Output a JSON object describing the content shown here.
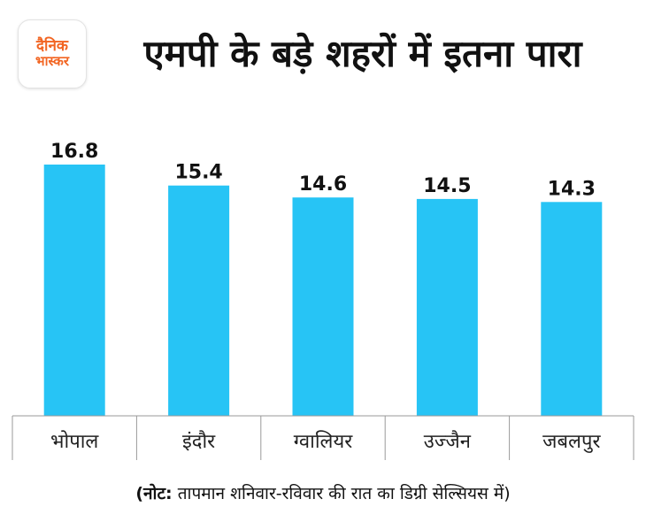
{
  "brand": {
    "line1": "दैनिक",
    "line2": "भास्कर"
  },
  "colors": {
    "bar": "#27c4f5",
    "axis": "#9a9a9a",
    "brand": "#f26522"
  },
  "note": {
    "bold": "(नोट:",
    "rest": " तापमान शनिवार-रविवार की रात का डिग्री सेल्सियस में)"
  },
  "chart_data": {
    "type": "bar",
    "title": "एमपी के बड़े शहरों में इतना पारा",
    "categories": [
      "भोपाल",
      "इंदौर",
      "ग्वालियर",
      "उज्जैन",
      "जबलपुर"
    ],
    "values": [
      16.8,
      15.4,
      14.6,
      14.5,
      14.3
    ],
    "value_labels": [
      "16.8",
      "15.4",
      "14.6",
      "14.5",
      "14.3"
    ],
    "xlabel": "",
    "ylabel": "",
    "ylim": [
      0,
      16.8
    ],
    "grid": false,
    "unit": "डिग्री सेल्सियस"
  }
}
